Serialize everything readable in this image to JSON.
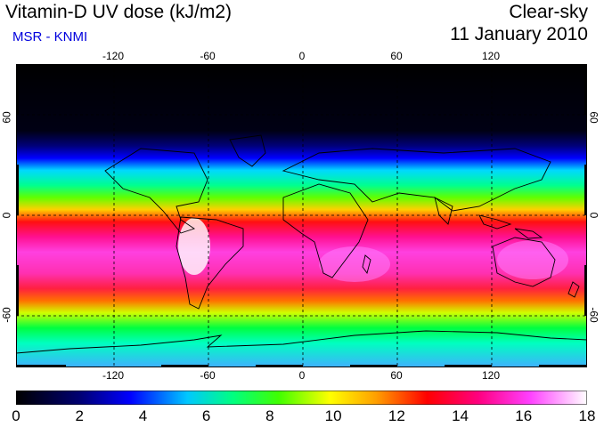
{
  "header": {
    "title": "Vitamin-D UV dose (kJ/m2)",
    "source": "MSR - KNMI",
    "condition": "Clear-sky",
    "date": "11 January 2010"
  },
  "map": {
    "longitude_labels": [
      "-120",
      "-60",
      "0",
      "60",
      "120"
    ],
    "latitude_labels_left": [
      "60",
      "0",
      "-60"
    ],
    "latitude_labels_right": [
      "60",
      "0",
      "-60"
    ],
    "longitude_ticks": [
      -120,
      -60,
      0,
      60,
      120
    ],
    "latitude_ticks": [
      60,
      0,
      -60
    ]
  },
  "colorbar": {
    "labels": [
      "0",
      "2",
      "4",
      "6",
      "8",
      "10",
      "12",
      "14",
      "16",
      "18"
    ],
    "min": 0,
    "max": 18,
    "colors": [
      "#000000",
      "#000066",
      "#0000ff",
      "#00aaff",
      "#00ffaa",
      "#00ff00",
      "#aaff00",
      "#ffff00",
      "#ffaa00",
      "#ff0000",
      "#ff0066",
      "#ff00cc",
      "#ff66ff",
      "#ffffff"
    ]
  }
}
